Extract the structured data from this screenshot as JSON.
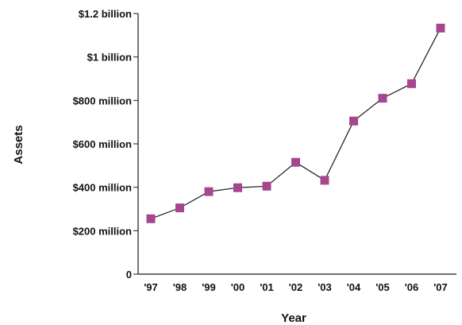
{
  "chart_data": {
    "type": "line",
    "title": "",
    "xlabel": "Year",
    "ylabel": "Assets",
    "x": [
      "'97",
      "'98",
      "'99",
      "'00",
      "'01",
      "'02",
      "'03",
      "'04",
      "'05",
      "'06",
      "'07"
    ],
    "y_ticks": [
      {
        "value": 0,
        "label": "0"
      },
      {
        "value": 200,
        "label": "$200 million"
      },
      {
        "value": 400,
        "label": "$400 million"
      },
      {
        "value": 600,
        "label": "$600 million"
      },
      {
        "value": 800,
        "label": "$800 million"
      },
      {
        "value": 1000,
        "label": "$1 billion"
      },
      {
        "value": 1200,
        "label": "$1.2 billion"
      }
    ],
    "ylim": [
      0,
      1200
    ],
    "y_units": "millions of dollars",
    "series": [
      {
        "values": [
          255,
          305,
          380,
          398,
          405,
          515,
          432,
          705,
          810,
          877,
          1133
        ]
      }
    ],
    "colors": {
      "line": "#1a1a1a",
      "marker": "#a5468f",
      "axis": "#1a1a1a"
    },
    "marker": "square",
    "grid": false,
    "legend": "none"
  }
}
